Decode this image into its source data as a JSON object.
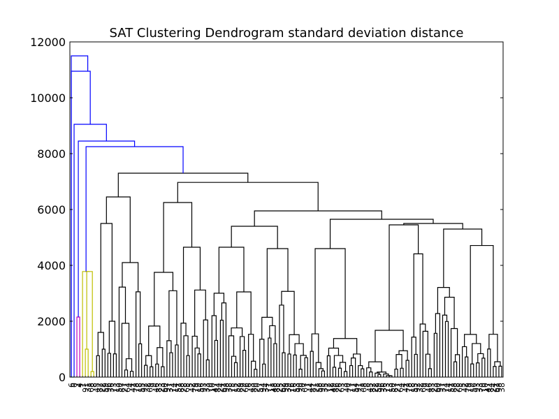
{
  "chart_data": {
    "type": "dendrogram",
    "title": "SAT Clustering Dendrogram standard deviation distance",
    "xlabel": "",
    "ylabel": "",
    "ylim": [
      0,
      12000
    ],
    "yticks": [
      0,
      2000,
      4000,
      6000,
      8000,
      10000,
      12000
    ],
    "grid": false,
    "leaf_count": 154,
    "colors": {
      "top_level": "#0000ff",
      "cluster_cyan": "#00bfbf",
      "cluster_magenta": "#bf00bf",
      "cluster_yellow": "#bfbf00",
      "default": "#000000"
    },
    "merge_heights": [
      {
        "cluster": "root",
        "height": 11500,
        "color": "#0000ff"
      },
      {
        "cluster": "level-2",
        "height": 10950,
        "color": "#0000ff"
      },
      {
        "cluster": "level-3",
        "height": 9050,
        "color": "#0000ff"
      },
      {
        "cluster": "level-4",
        "height": 8450,
        "color": "#0000ff"
      },
      {
        "cluster": "level-5",
        "height": 8250,
        "color": "#0000ff"
      },
      {
        "cluster": "magenta",
        "height": 2150,
        "color": "#bf00bf"
      },
      {
        "cluster": "yellow",
        "height": 3780,
        "color": "#bfbf00"
      },
      {
        "cluster": "main",
        "height": 7300,
        "color": "#000000"
      }
    ],
    "leaf_labels_visible": [
      "6",
      "0",
      "2",
      "4",
      "1"
    ]
  }
}
